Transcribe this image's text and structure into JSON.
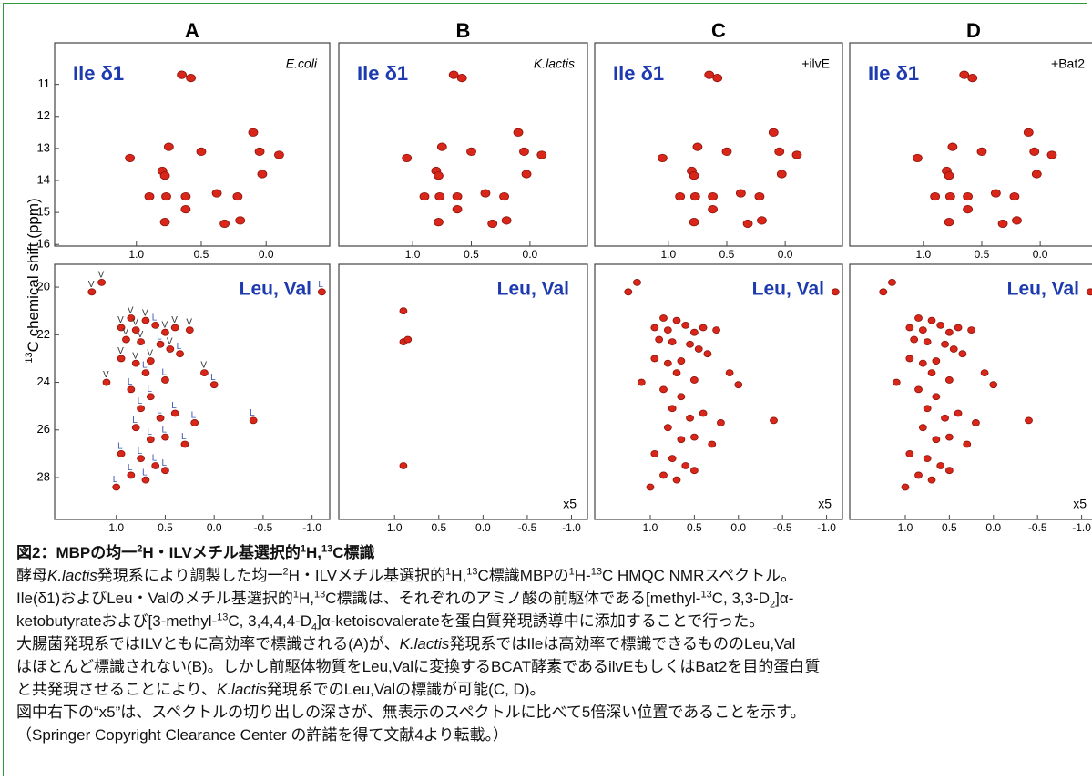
{
  "figure": {
    "y_axis_label": {
      "sup": "13",
      "text": "C chemical shift (ppm)"
    },
    "top_xlim": [
      1.63,
      -0.49
    ],
    "top_xticks": [
      {
        "value": 1.0,
        "label": "1.0"
      },
      {
        "value": 0.5,
        "label": "0.5"
      },
      {
        "value": 0.0,
        "label": "0.0"
      }
    ],
    "top_ylim": [
      9.7,
      16.05
    ],
    "top_yticks": [
      11,
      12,
      13,
      14,
      15,
      16
    ],
    "bottom_xlim": [
      1.63,
      -1.18
    ],
    "bottom_xticks": [
      {
        "value": 1.0,
        "label": "1.0"
      },
      {
        "value": 0.5,
        "label": "0.5"
      },
      {
        "value": 0.0,
        "label": "0.0"
      },
      {
        "value": -0.5,
        "label": "-0.5"
      },
      {
        "value": -1.0,
        "label": "-1.0"
      }
    ],
    "bottom_ylim": [
      19.04,
      29.76
    ],
    "bottom_yticks": [
      20,
      22,
      24,
      26,
      28
    ],
    "ile_peaks": [
      [
        0.65,
        10.7
      ],
      [
        0.58,
        10.8
      ],
      [
        1.05,
        13.3
      ],
      [
        0.75,
        12.95
      ],
      [
        0.8,
        13.7
      ],
      [
        0.78,
        13.85
      ],
      [
        0.9,
        14.5
      ],
      [
        0.77,
        14.5
      ],
      [
        0.62,
        14.5
      ],
      [
        0.62,
        14.9
      ],
      [
        0.78,
        15.3
      ],
      [
        0.38,
        14.4
      ],
      [
        0.22,
        14.5
      ],
      [
        0.32,
        15.35
      ],
      [
        0.2,
        15.25
      ],
      [
        0.5,
        13.1
      ],
      [
        0.1,
        12.5
      ],
      [
        0.05,
        13.1
      ],
      [
        -0.1,
        13.2
      ],
      [
        0.03,
        13.8
      ]
    ],
    "leu_val_peaks": [
      [
        1.25,
        20.2,
        "V"
      ],
      [
        1.15,
        19.8,
        "V"
      ],
      [
        -1.1,
        20.2,
        "L"
      ],
      [
        0.85,
        21.3,
        "V"
      ],
      [
        0.7,
        21.4,
        "V"
      ],
      [
        0.95,
        21.7,
        "V"
      ],
      [
        0.8,
        21.8,
        "V"
      ],
      [
        0.6,
        21.6,
        "L"
      ],
      [
        0.5,
        21.9,
        "V"
      ],
      [
        0.4,
        21.7,
        "V"
      ],
      [
        0.25,
        21.8,
        "V"
      ],
      [
        0.9,
        22.2,
        "V"
      ],
      [
        0.75,
        22.3,
        "V"
      ],
      [
        0.55,
        22.4,
        "L"
      ],
      [
        0.45,
        22.6,
        "V"
      ],
      [
        0.35,
        22.8,
        "L"
      ],
      [
        0.95,
        23.0,
        "V"
      ],
      [
        0.8,
        23.2,
        "V"
      ],
      [
        0.65,
        23.1,
        "V"
      ],
      [
        0.7,
        23.6,
        "L"
      ],
      [
        0.5,
        23.9,
        "L"
      ],
      [
        0.1,
        23.6,
        "V"
      ],
      [
        0.0,
        24.1,
        "L"
      ],
      [
        1.1,
        24.0,
        "V"
      ],
      [
        0.85,
        24.3,
        "L"
      ],
      [
        0.65,
        24.6,
        "L"
      ],
      [
        0.75,
        25.1,
        "L"
      ],
      [
        0.55,
        25.5,
        "L"
      ],
      [
        0.4,
        25.3,
        "L"
      ],
      [
        0.2,
        25.7,
        "L"
      ],
      [
        -0.4,
        25.6,
        "L"
      ],
      [
        0.8,
        25.9,
        "L"
      ],
      [
        0.65,
        26.4,
        "L"
      ],
      [
        0.5,
        26.3,
        "L"
      ],
      [
        0.3,
        26.6,
        "L"
      ],
      [
        0.95,
        27.0,
        "L"
      ],
      [
        0.75,
        27.2,
        "L"
      ],
      [
        0.6,
        27.5,
        "L"
      ],
      [
        0.5,
        27.7,
        "L"
      ],
      [
        0.85,
        27.9,
        "L"
      ],
      [
        0.7,
        28.1,
        "L"
      ],
      [
        1.0,
        28.4,
        "L"
      ]
    ],
    "panels": [
      {
        "letter": "A",
        "top_label": "Ile δ1",
        "top_tag": "E.coli",
        "bottom_label": "Leu, Val",
        "peak_labels": true
      },
      {
        "letter": "B",
        "top_label": "Ile δ1",
        "top_tag": "K.lactis",
        "bottom_label": "Leu, Val",
        "bottom_tag": "x5",
        "leu_val_peaks": [
          [
            0.9,
            21.0
          ],
          [
            0.9,
            22.3
          ],
          [
            0.85,
            22.2
          ],
          [
            0.9,
            27.5
          ]
        ]
      },
      {
        "letter": "C",
        "top_label": "Ile δ1",
        "top_tag": "+ilvE",
        "bottom_label": "Leu, Val",
        "bottom_tag": "x5"
      },
      {
        "letter": "D",
        "top_label": "Ile δ1",
        "top_tag": "+Bat2",
        "bottom_label": "Leu, Val",
        "bottom_tag": "x5"
      }
    ]
  },
  "caption": {
    "title": [
      "図2：MBPの均一",
      {
        "sup": "2"
      },
      "H・ILVメチル基選択的",
      {
        "sup": "1"
      },
      "H,",
      {
        "sup": "13"
      },
      "C標識"
    ],
    "lines": [
      [
        "酵母",
        {
          "i": "K.lactis"
        },
        "発現系により調製した均一",
        {
          "sup": "2"
        },
        "H・ILVメチル基選択的",
        {
          "sup": "1"
        },
        "H,",
        {
          "sup": "13"
        },
        "C標識MBPの",
        {
          "sup": "1"
        },
        "H-",
        {
          "sup": "13"
        },
        "C  HMQC NMRスペクトル。"
      ],
      [
        "Ile(δ1)およびLeu・Valのメチル基選択的",
        {
          "sup": "1"
        },
        "H,",
        {
          "sup": "13"
        },
        "C標識は、それぞれのアミノ酸の前駆体である[methyl-",
        {
          "sup": "13"
        },
        "C, 3,3-D",
        {
          "sub": "2"
        },
        "]α-"
      ],
      [
        "ketobutyrateおよび[3-methyl-",
        {
          "sup": "13"
        },
        "C, 3,4,4,4-D",
        {
          "sub": "4"
        },
        "]α-ketoisovalerateを蛋白質発現誘導中に添加することで行った。"
      ],
      [
        "大腸菌発現系ではILVともに高効率で標識される(A)が、",
        {
          "i": "K.lactis"
        },
        "発現系ではIleは高効率で標識できるもののLeu,Val"
      ],
      [
        "はほとんど標識されない(B)。しかし前駆体物質をLeu,Valに変換するBCAT酵素であるilvEもしくはBat2を目的蛋白質"
      ],
      [
        "と共発現させることにより、",
        {
          "i": "K.lactis"
        },
        "発現系でのLeu,Valの標識が可能(C, D)。"
      ],
      [
        "図中右下の“x5”は、スペクトルの切り出しの深さが、無表示のスペクトルに比べて5倍深い位置であることを示す。"
      ],
      [
        "（Springer Copyright Clearance Center の許諾を得て文献4より転載。）"
      ]
    ]
  }
}
